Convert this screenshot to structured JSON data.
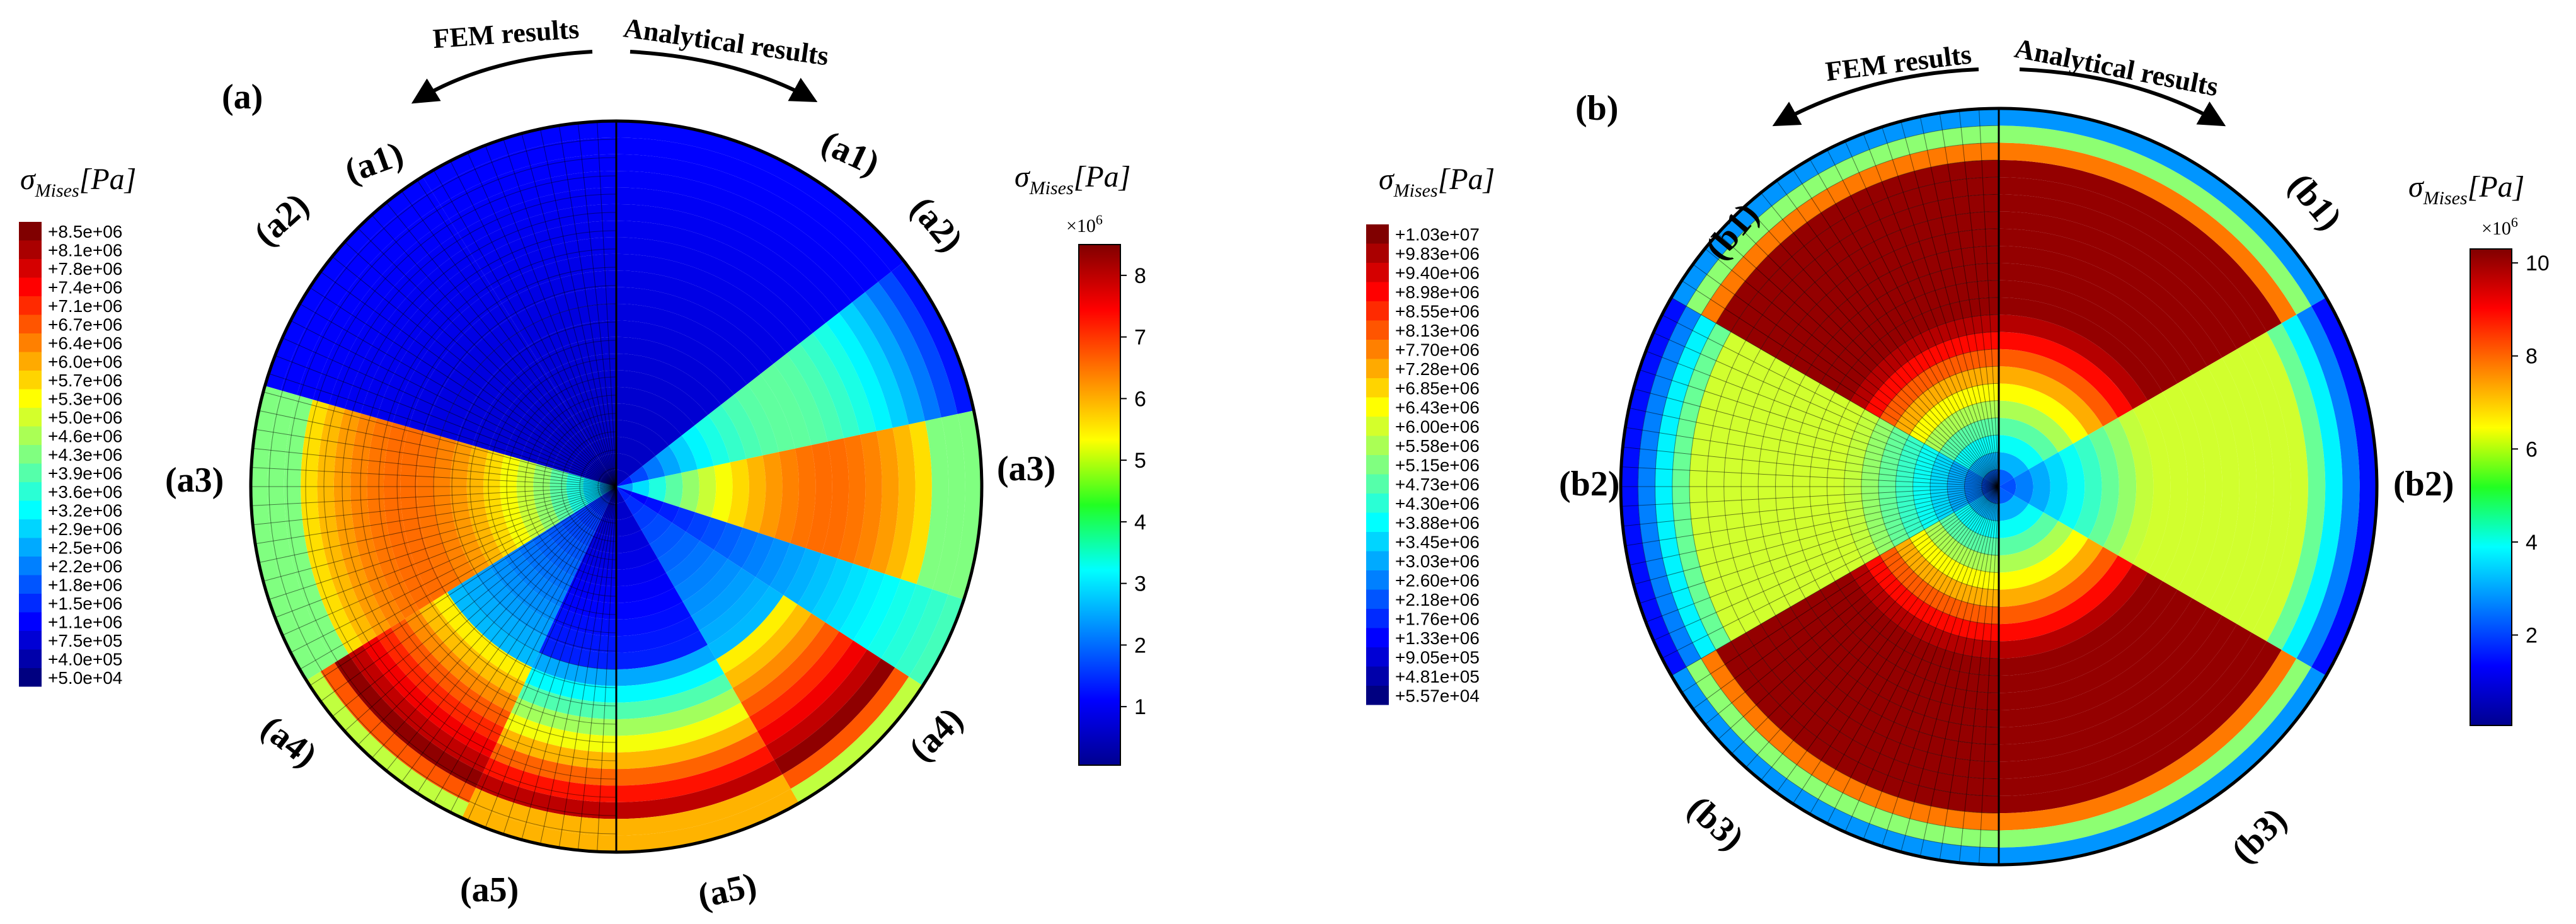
{
  "panel_a": {
    "tag": "(a)",
    "fem_title": "FEM results",
    "analytical_title": "Analytical results",
    "left_labels": [
      "(a1)",
      "(a2)",
      "(a3)",
      "(a4)",
      "(a5)"
    ],
    "right_labels": [
      "(a1)",
      "(a2)",
      "(a3)",
      "(a4)",
      "(a5)"
    ],
    "fem_legend": {
      "title_symbol": "σ",
      "title_sub": "Mises",
      "title_unit": "[Pa]",
      "entries": [
        "+8.5e+06",
        "+8.1e+06",
        "+7.8e+06",
        "+7.4e+06",
        "+7.1e+06",
        "+6.7e+06",
        "+6.4e+06",
        "+6.0e+06",
        "+5.7e+06",
        "+5.3e+06",
        "+5.0e+06",
        "+4.6e+06",
        "+4.3e+06",
        "+3.9e+06",
        "+3.6e+06",
        "+3.2e+06",
        "+2.9e+06",
        "+2.5e+06",
        "+2.2e+06",
        "+1.8e+06",
        "+1.5e+06",
        "+1.1e+06",
        "+7.5e+05",
        "+4.0e+05",
        "+5.0e+04"
      ]
    },
    "colorbar": {
      "title_symbol": "σ",
      "title_sub": "Mises",
      "title_unit": "[Pa]",
      "multiplier": "×10",
      "exponent": "6",
      "ticks": [
        "1",
        "2",
        "3",
        "4",
        "5",
        "6",
        "7",
        "8"
      ]
    }
  },
  "panel_b": {
    "tag": "(b)",
    "fem_title": "FEM results",
    "analytical_title": "Analytical results",
    "left_labels": [
      "(b1)",
      "(b2)",
      "(b3)"
    ],
    "right_labels": [
      "(b1)",
      "(b2)",
      "(b3)"
    ],
    "fem_legend": {
      "title_symbol": "σ",
      "title_sub": "Mises",
      "title_unit": "[Pa]",
      "entries": [
        "+1.03e+07",
        "+9.83e+06",
        "+9.40e+06",
        "+8.98e+06",
        "+8.55e+06",
        "+8.13e+06",
        "+7.70e+06",
        "+7.28e+06",
        "+6.85e+06",
        "+6.43e+06",
        "+6.00e+06",
        "+5.58e+06",
        "+5.15e+06",
        "+4.73e+06",
        "+4.30e+06",
        "+3.88e+06",
        "+3.45e+06",
        "+3.03e+06",
        "+2.60e+06",
        "+2.18e+06",
        "+1.76e+06",
        "+1.33e+06",
        "+9.05e+05",
        "+4.81e+05",
        "+5.57e+04"
      ]
    },
    "colorbar": {
      "title_symbol": "σ",
      "title_sub": "Mises",
      "title_unit": "[Pa]",
      "multiplier": "×10",
      "exponent": "6",
      "ticks": [
        "2",
        "4",
        "6",
        "8",
        "10"
      ]
    }
  }
}
